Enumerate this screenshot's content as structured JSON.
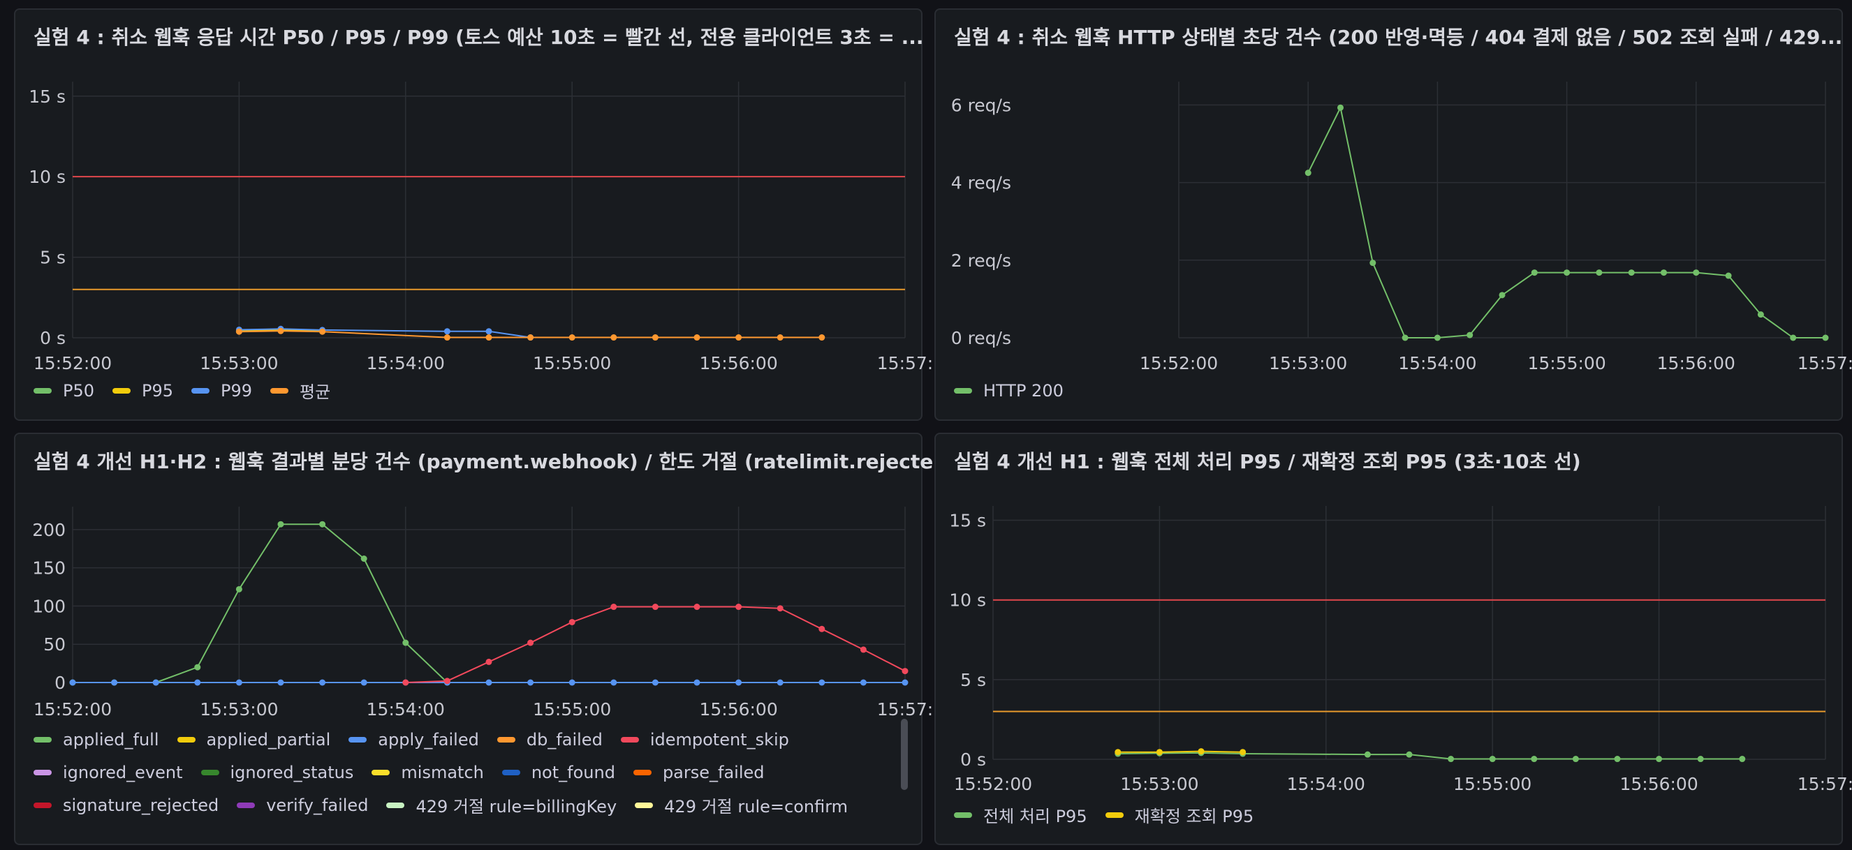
{
  "chart_data": [
    {
      "id": "p1",
      "type": "line",
      "title": "실험 4 : 취소 웹훅 응답 시간 P50 / P95 / P99 (토스 예산 10초 = 빨간 선, 전용 클라이언트 3초 = ...",
      "x_ticks": [
        "15:52:00",
        "15:53:00",
        "15:54:00",
        "15:55:00",
        "15:56:00",
        "15:57:"
      ],
      "x_range": [
        "15:52:00",
        "15:57:00"
      ],
      "y_ticks": [
        "0 s",
        "5 s",
        "10 s",
        "15 s"
      ],
      "ylim": [
        0,
        15.9
      ],
      "thresholds": [
        {
          "value": 10,
          "color": "#e0474c"
        },
        {
          "value": 3,
          "color": "#e89a2c"
        }
      ],
      "series": [
        {
          "name": "P50",
          "color": "#73bf69",
          "points": [
            [
              "15:53:00",
              0.4
            ],
            [
              "15:53:15",
              0.45
            ],
            [
              "15:53:30",
              0.4
            ]
          ]
        },
        {
          "name": "P95",
          "color": "#f2cc0c",
          "points": [
            [
              "15:53:00",
              0.42
            ],
            [
              "15:53:15",
              0.48
            ],
            [
              "15:53:30",
              0.42
            ]
          ]
        },
        {
          "name": "P99",
          "color": "#5794f2",
          "points": [
            [
              "15:53:00",
              0.5
            ],
            [
              "15:53:15",
              0.55
            ],
            [
              "15:53:30",
              0.48
            ],
            [
              "15:54:15",
              0.4
            ],
            [
              "15:54:30",
              0.4
            ],
            [
              "15:54:45",
              0.02
            ]
          ]
        },
        {
          "name": "평균",
          "color": "#ff9830",
          "points": [
            [
              "15:53:00",
              0.38
            ],
            [
              "15:53:15",
              0.42
            ],
            [
              "15:53:30",
              0.38
            ],
            [
              "15:54:15",
              0.02
            ],
            [
              "15:54:30",
              0.02
            ],
            [
              "15:54:45",
              0.02
            ],
            [
              "15:55:00",
              0.02
            ],
            [
              "15:55:15",
              0.02
            ],
            [
              "15:55:30",
              0.02
            ],
            [
              "15:55:45",
              0.02
            ],
            [
              "15:56:00",
              0.02
            ],
            [
              "15:56:15",
              0.02
            ],
            [
              "15:56:30",
              0.02
            ]
          ]
        }
      ]
    },
    {
      "id": "p2",
      "type": "line",
      "title": "실험 4 : 취소 웹훅 HTTP 상태별 초당 건수 (200 반영·멱등 / 404 결제 없음 / 502 조회 실패 / 429...",
      "x_ticks": [
        "15:52:00",
        "15:53:00",
        "15:54:00",
        "15:55:00",
        "15:56:00",
        "15:57:"
      ],
      "x_range": [
        "15:52:00",
        "15:57:00"
      ],
      "y_ticks": [
        "0 req/s",
        "2 req/s",
        "4 req/s",
        "6 req/s"
      ],
      "ylim": [
        0,
        6.6
      ],
      "series": [
        {
          "name": "HTTP 200",
          "color": "#73bf69",
          "points": [
            [
              "15:53:00",
              4.25
            ],
            [
              "15:53:15",
              5.93
            ],
            [
              "15:53:30",
              1.93
            ],
            [
              "15:53:45",
              0
            ],
            [
              "15:54:00",
              0
            ],
            [
              "15:54:15",
              0.07
            ],
            [
              "15:54:30",
              1.1
            ],
            [
              "15:54:45",
              1.68
            ],
            [
              "15:55:00",
              1.68
            ],
            [
              "15:55:15",
              1.68
            ],
            [
              "15:55:30",
              1.68
            ],
            [
              "15:55:45",
              1.68
            ],
            [
              "15:56:00",
              1.68
            ],
            [
              "15:56:15",
              1.6
            ],
            [
              "15:56:30",
              0.6
            ],
            [
              "15:56:45",
              0
            ],
            [
              "15:57:00",
              0
            ]
          ]
        }
      ]
    },
    {
      "id": "p3",
      "type": "line",
      "title": "실험 4 개선 H1·H2 : 웹훅 결과별 분당 건수 (payment.webhook) / 한도 거절 (ratelimit.rejecte...",
      "x_ticks": [
        "15:52:00",
        "15:53:00",
        "15:54:00",
        "15:55:00",
        "15:56:00",
        "15:57:"
      ],
      "x_range": [
        "15:52:00",
        "15:57:00"
      ],
      "y_ticks": [
        "0",
        "50",
        "100",
        "150",
        "200"
      ],
      "ylim": [
        0,
        230
      ],
      "series": [
        {
          "name": "applied_full",
          "color": "#73bf69",
          "points": [
            [
              "15:52:00",
              0
            ],
            [
              "15:52:15",
              0
            ],
            [
              "15:52:30",
              0
            ],
            [
              "15:52:45",
              20
            ],
            [
              "15:53:00",
              122
            ],
            [
              "15:53:15",
              207
            ],
            [
              "15:53:30",
              207
            ],
            [
              "15:53:45",
              162
            ],
            [
              "15:54:00",
              52
            ],
            [
              "15:54:15",
              0
            ]
          ]
        },
        {
          "name": "applied_partial",
          "color": "#f2cc0c"
        },
        {
          "name": "apply_failed",
          "color": "#5794f2",
          "points": [
            [
              "15:52:00",
              0
            ],
            [
              "15:52:15",
              0
            ],
            [
              "15:52:30",
              0
            ],
            [
              "15:52:45",
              0
            ],
            [
              "15:53:00",
              0
            ],
            [
              "15:53:15",
              0
            ],
            [
              "15:53:30",
              0
            ],
            [
              "15:53:45",
              0
            ],
            [
              "15:54:00",
              0
            ],
            [
              "15:54:15",
              0
            ],
            [
              "15:54:30",
              0
            ],
            [
              "15:54:45",
              0
            ],
            [
              "15:55:00",
              0
            ],
            [
              "15:55:15",
              0
            ],
            [
              "15:55:30",
              0
            ],
            [
              "15:55:45",
              0
            ],
            [
              "15:56:00",
              0
            ],
            [
              "15:56:15",
              0
            ],
            [
              "15:56:30",
              0
            ],
            [
              "15:56:45",
              0
            ],
            [
              "15:57:00",
              0
            ]
          ]
        },
        {
          "name": "db_failed",
          "color": "#ff9830"
        },
        {
          "name": "idempotent_skip",
          "color": "#f2495c",
          "points": [
            [
              "15:54:00",
              0
            ],
            [
              "15:54:15",
              2
            ],
            [
              "15:54:30",
              27
            ],
            [
              "15:54:45",
              52
            ],
            [
              "15:55:00",
              79
            ],
            [
              "15:55:15",
              99
            ],
            [
              "15:55:30",
              99
            ],
            [
              "15:55:45",
              99
            ],
            [
              "15:56:00",
              99
            ],
            [
              "15:56:15",
              97
            ],
            [
              "15:56:30",
              70
            ],
            [
              "15:56:45",
              43
            ],
            [
              "15:57:00",
              15
            ]
          ]
        },
        {
          "name": "ignored_event",
          "color": "#ca95e5"
        },
        {
          "name": "ignored_status",
          "color": "#37872d"
        },
        {
          "name": "mismatch",
          "color": "#fade2a"
        },
        {
          "name": "not_found",
          "color": "#1f60c4"
        },
        {
          "name": "parse_failed",
          "color": "#fa6400"
        },
        {
          "name": "signature_rejected",
          "color": "#c4162a"
        },
        {
          "name": "verify_failed",
          "color": "#8f3bb8"
        },
        {
          "name": "429 거절 rule=billingKey",
          "color": "#c8f2c2"
        },
        {
          "name": "429 거절 rule=confirm",
          "color": "#fff899"
        }
      ]
    },
    {
      "id": "p4",
      "type": "line",
      "title": "실험 4 개선 H1 : 웹훅 전체 처리 P95 / 재확정 조회 P95 (3초·10초 선)",
      "x_ticks": [
        "15:52:00",
        "15:53:00",
        "15:54:00",
        "15:55:00",
        "15:56:00",
        "15:57:"
      ],
      "x_range": [
        "15:52:00",
        "15:57:00"
      ],
      "y_ticks": [
        "0 s",
        "5 s",
        "10 s",
        "15 s"
      ],
      "ylim": [
        0,
        15.9
      ],
      "thresholds": [
        {
          "value": 10,
          "color": "#e0474c"
        },
        {
          "value": 3,
          "color": "#e89a2c"
        }
      ],
      "series": [
        {
          "name": "전체 처리 P95",
          "color": "#73bf69",
          "points": [
            [
              "15:52:45",
              0.35
            ],
            [
              "15:53:00",
              0.38
            ],
            [
              "15:53:15",
              0.4
            ],
            [
              "15:53:30",
              0.35
            ],
            [
              "15:54:15",
              0.3
            ],
            [
              "15:54:30",
              0.3
            ],
            [
              "15:54:45",
              0.02
            ],
            [
              "15:55:00",
              0.02
            ],
            [
              "15:55:15",
              0.02
            ],
            [
              "15:55:30",
              0.02
            ],
            [
              "15:55:45",
              0.02
            ],
            [
              "15:56:00",
              0.02
            ],
            [
              "15:56:15",
              0.02
            ],
            [
              "15:56:30",
              0.02
            ]
          ]
        },
        {
          "name": "재확정 조회 P95",
          "color": "#f2cc0c",
          "points": [
            [
              "15:52:45",
              0.45
            ],
            [
              "15:53:00",
              0.45
            ],
            [
              "15:53:15",
              0.5
            ],
            [
              "15:53:30",
              0.45
            ]
          ]
        }
      ]
    }
  ]
}
